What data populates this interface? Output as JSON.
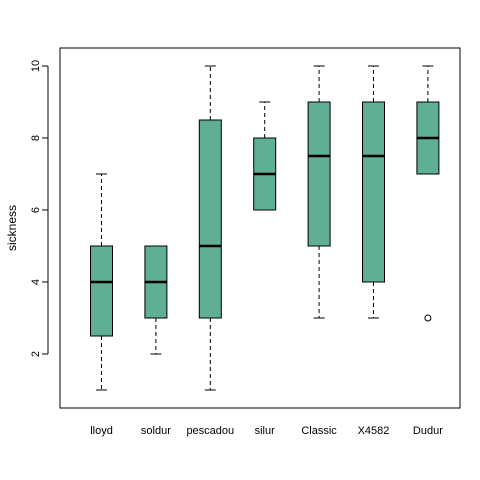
{
  "chart_data": {
    "type": "boxplot",
    "title": "",
    "xlabel": "",
    "ylabel": "sickness",
    "ylim": [
      0.5,
      10.5
    ],
    "yticks": [
      2,
      4,
      6,
      8,
      10
    ],
    "categories": [
      "lloyd",
      "soldur",
      "pescadou",
      "silur",
      "Classic",
      "X4582",
      "Dudur"
    ],
    "boxes": [
      {
        "category": "lloyd",
        "whisker_low": 1,
        "q1": 2.5,
        "median": 4,
        "q3": 5,
        "whisker_high": 7,
        "outliers": []
      },
      {
        "category": "soldur",
        "whisker_low": 2,
        "q1": 3,
        "median": 4,
        "q3": 5,
        "whisker_high": 5,
        "outliers": []
      },
      {
        "category": "pescadou",
        "whisker_low": 1,
        "q1": 3,
        "median": 5,
        "q3": 8.5,
        "whisker_high": 10,
        "outliers": []
      },
      {
        "category": "silur",
        "whisker_low": 6,
        "q1": 6,
        "median": 7,
        "q3": 8,
        "whisker_high": 9,
        "outliers": []
      },
      {
        "category": "Classic",
        "whisker_low": 3,
        "q1": 5,
        "median": 7.5,
        "q3": 9,
        "whisker_high": 10,
        "outliers": []
      },
      {
        "category": "X4582",
        "whisker_low": 3,
        "q1": 4,
        "median": 7.5,
        "q3": 9,
        "whisker_high": 10,
        "outliers": []
      },
      {
        "category": "Dudur",
        "whisker_low": 7,
        "q1": 7,
        "median": 8,
        "q3": 9,
        "whisker_high": 10,
        "outliers": [
          3
        ]
      }
    ],
    "box_color": "#5fae96",
    "grid": false,
    "legend": "none"
  }
}
